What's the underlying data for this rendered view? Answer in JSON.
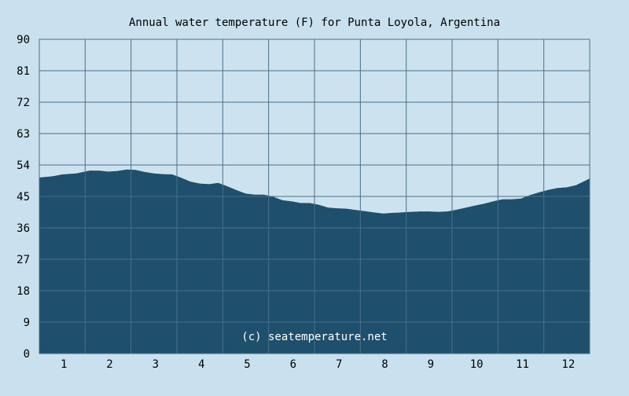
{
  "chart_data": {
    "type": "area",
    "title": "Annual water temperature (F) for Punta Loyola, Argentina",
    "xlabel": "",
    "ylabel": "",
    "ylim": [
      0,
      90
    ],
    "xlim": [
      0.5,
      12.5
    ],
    "yticks": [
      0,
      9,
      18,
      27,
      36,
      45,
      54,
      63,
      72,
      81,
      90
    ],
    "xticks": [
      1,
      2,
      3,
      4,
      5,
      6,
      7,
      8,
      9,
      10,
      11,
      12
    ],
    "grid": true,
    "legend": "none",
    "watermark": "(c) seatemperature.net",
    "colors": {
      "background": "#c9e1ee",
      "plot_background": "#cce3ef",
      "fill": "#1e4f6c",
      "grid": "#4a6f8a",
      "text": "#000000",
      "watermark": "#ffffff"
    },
    "series": [
      {
        "x": [
          0.5,
          0.8,
          1.0,
          1.3,
          1.6,
          1.8,
          2.0,
          2.2,
          2.4,
          2.6,
          2.8,
          3.0,
          3.2,
          3.4,
          3.6,
          3.8,
          4.0,
          4.2,
          4.4,
          4.6,
          4.8,
          5.0,
          5.2,
          5.4,
          5.6,
          5.8,
          6.0,
          6.2,
          6.4,
          6.6,
          6.8,
          7.0,
          7.2,
          7.4,
          7.6,
          7.8,
          8.0,
          8.2,
          8.4,
          8.6,
          8.8,
          9.0,
          9.2,
          9.4,
          9.6,
          9.8,
          10.0,
          10.2,
          10.4,
          10.6,
          10.8,
          11.0,
          11.2,
          11.4,
          11.6,
          11.8,
          12.0,
          12.2,
          12.5
        ],
        "values": [
          50.4,
          50.8,
          51.3,
          51.6,
          52.4,
          52.4,
          52.1,
          52.3,
          52.7,
          52.6,
          52.0,
          51.6,
          51.4,
          51.3,
          50.3,
          49.2,
          48.7,
          48.5,
          48.9,
          47.9,
          46.8,
          45.8,
          45.5,
          45.5,
          44.9,
          43.9,
          43.6,
          43.1,
          43.1,
          42.6,
          41.8,
          41.6,
          41.5,
          41.1,
          40.8,
          40.4,
          40.1,
          40.3,
          40.4,
          40.6,
          40.7,
          40.7,
          40.6,
          40.7,
          41.2,
          41.8,
          42.4,
          42.9,
          43.6,
          44.2,
          44.2,
          44.4,
          45.4,
          46.2,
          46.9,
          47.4,
          47.6,
          48.2,
          50.1
        ]
      }
    ]
  }
}
